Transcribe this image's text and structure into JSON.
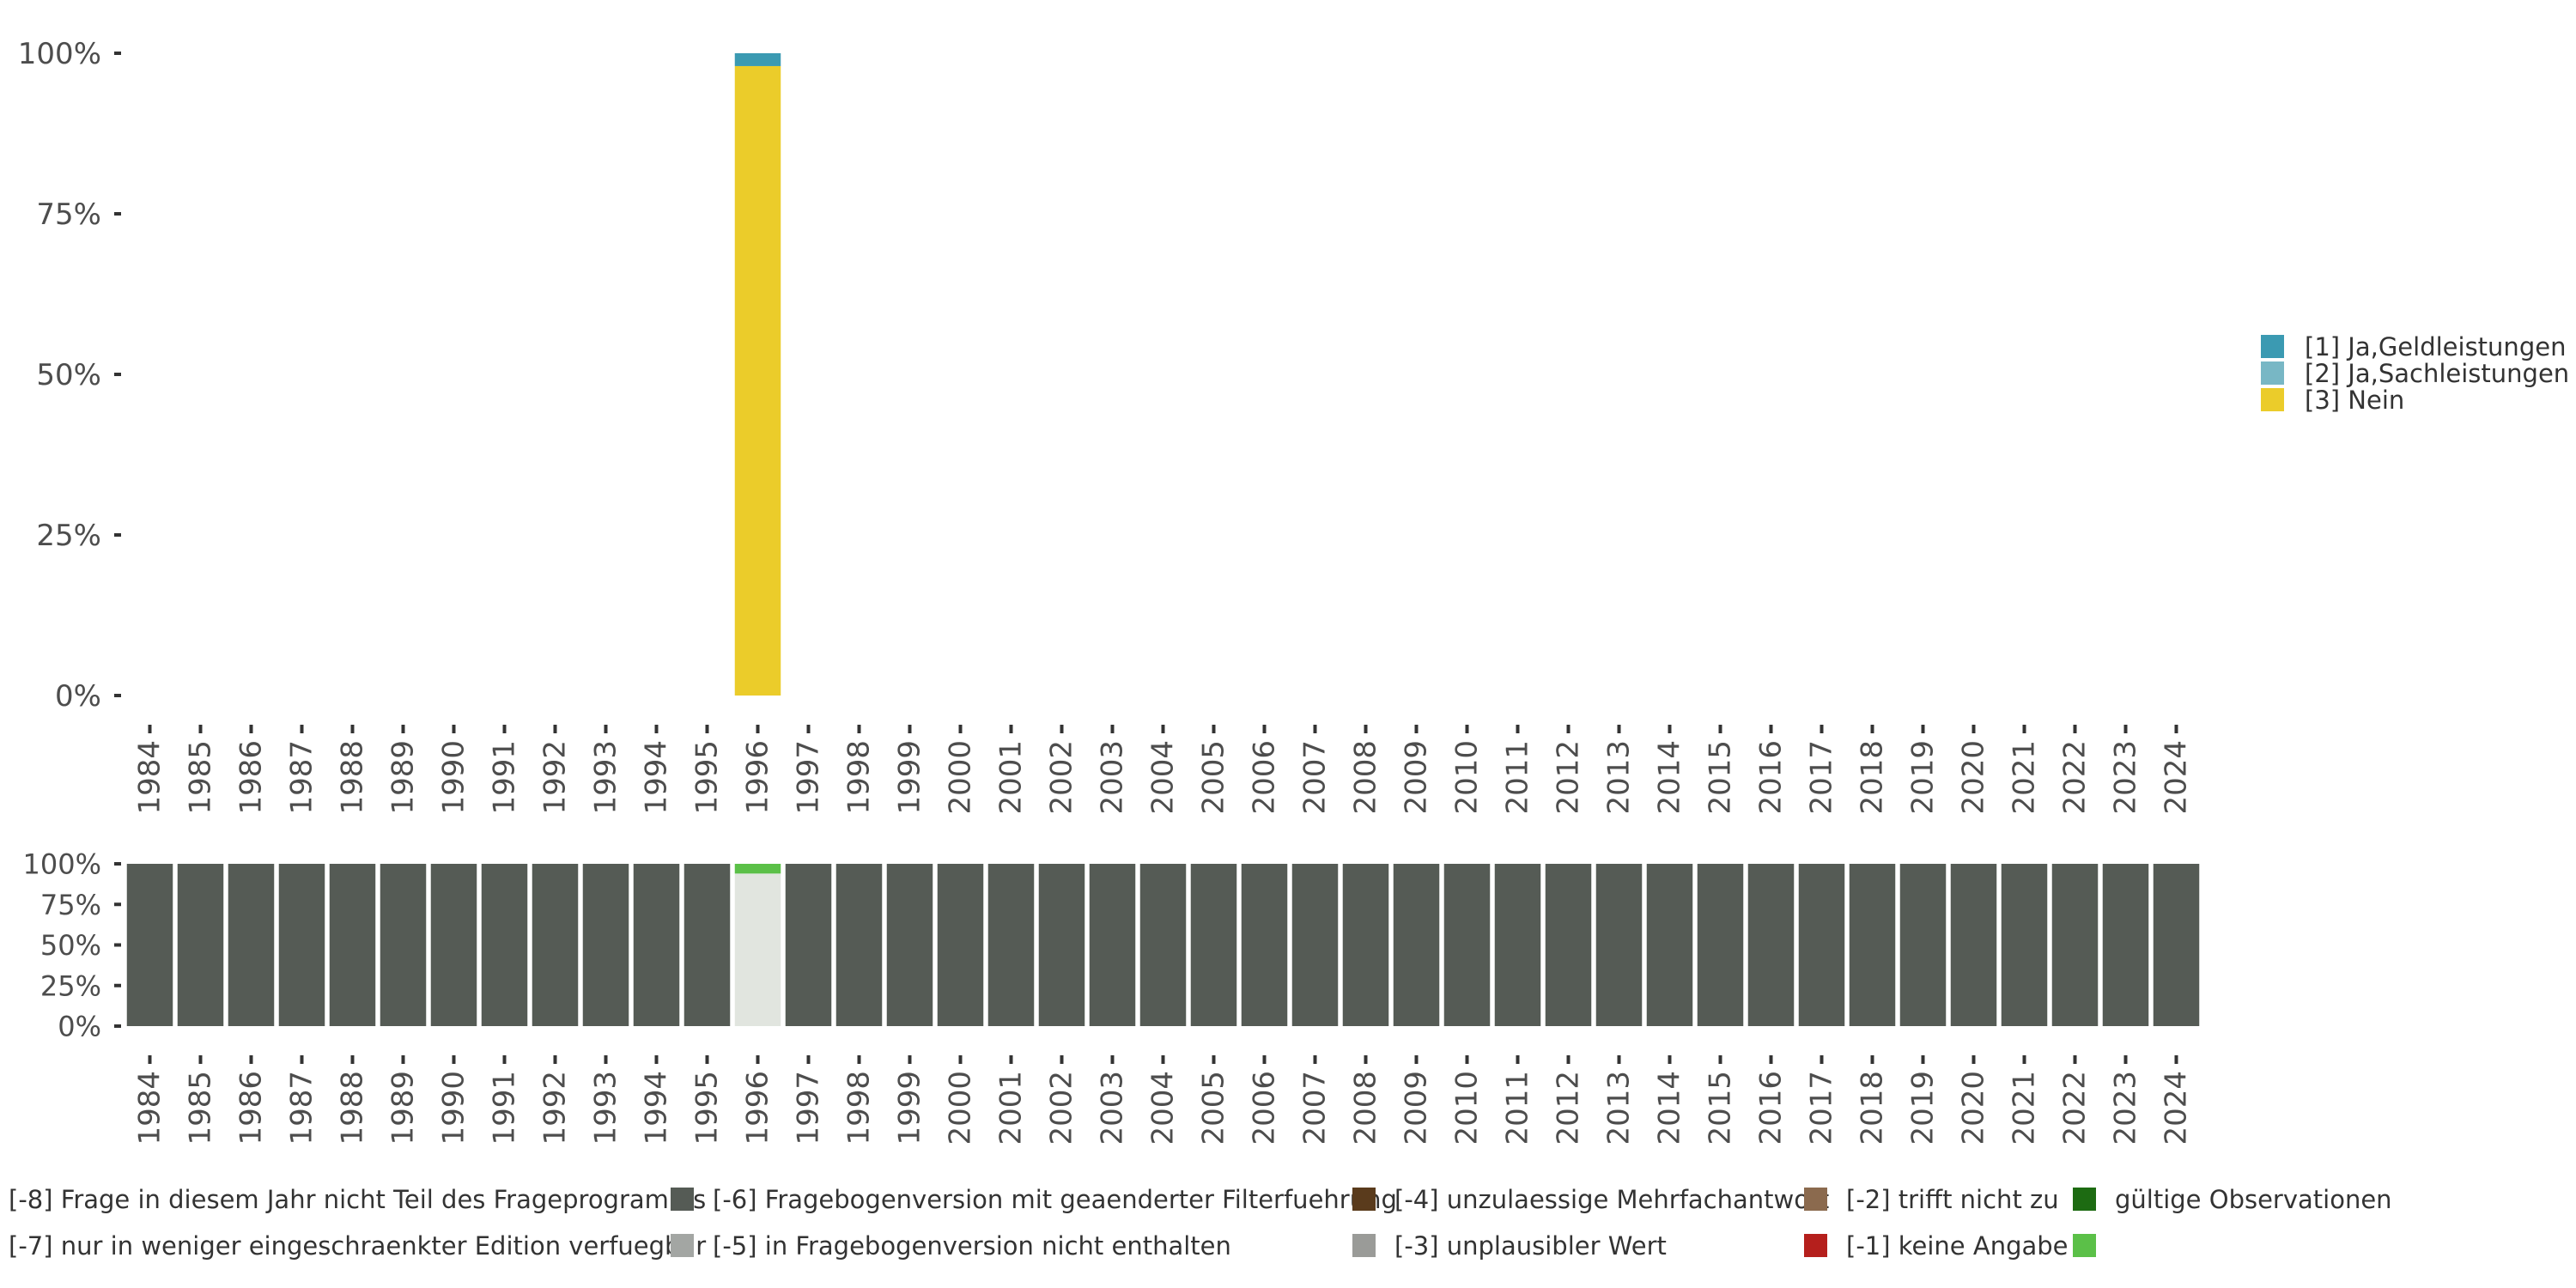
{
  "chart_data": [
    {
      "type": "bar",
      "stacked": true,
      "title": "",
      "xlabel": "",
      "ylabel": "",
      "ylim": [
        0,
        100
      ],
      "yticks": [
        "0%",
        "25%",
        "50%",
        "75%",
        "100%"
      ],
      "categories": [
        "1984",
        "1985",
        "1986",
        "1987",
        "1988",
        "1989",
        "1990",
        "1991",
        "1992",
        "1993",
        "1994",
        "1995",
        "1996",
        "1997",
        "1998",
        "1999",
        "2000",
        "2001",
        "2002",
        "2003",
        "2004",
        "2005",
        "2006",
        "2007",
        "2008",
        "2009",
        "2010",
        "2011",
        "2012",
        "2013",
        "2014",
        "2015",
        "2016",
        "2017",
        "2018",
        "2019",
        "2020",
        "2021",
        "2022",
        "2023",
        "2024"
      ],
      "series": [
        {
          "name": "[3] Nein",
          "color": "#EBCC2A",
          "values": [
            0,
            0,
            0,
            0,
            0,
            0,
            0,
            0,
            0,
            0,
            0,
            0,
            98,
            0,
            0,
            0,
            0,
            0,
            0,
            0,
            0,
            0,
            0,
            0,
            0,
            0,
            0,
            0,
            0,
            0,
            0,
            0,
            0,
            0,
            0,
            0,
            0,
            0,
            0,
            0,
            0
          ]
        },
        {
          "name": "[2] Ja,Sachleistungen",
          "color": "#78B7C5",
          "values": [
            0,
            0,
            0,
            0,
            0,
            0,
            0,
            0,
            0,
            0,
            0,
            0,
            0,
            0,
            0,
            0,
            0,
            0,
            0,
            0,
            0,
            0,
            0,
            0,
            0,
            0,
            0,
            0,
            0,
            0,
            0,
            0,
            0,
            0,
            0,
            0,
            0,
            0,
            0,
            0,
            0
          ]
        },
        {
          "name": "[1] Ja,Geldleistungen",
          "color": "#3B9AB2",
          "values": [
            0,
            0,
            0,
            0,
            0,
            0,
            0,
            0,
            0,
            0,
            0,
            0,
            2,
            0,
            0,
            0,
            0,
            0,
            0,
            0,
            0,
            0,
            0,
            0,
            0,
            0,
            0,
            0,
            0,
            0,
            0,
            0,
            0,
            0,
            0,
            0,
            0,
            0,
            0,
            0,
            0
          ]
        }
      ],
      "legend": {
        "position": "right",
        "entries": [
          {
            "label": "[1] Ja,Geldleistungen",
            "color": "#3B9AB2"
          },
          {
            "label": "[2] Ja,Sachleistungen",
            "color": "#78B7C5"
          },
          {
            "label": "[3] Nein",
            "color": "#EBCC2A"
          }
        ]
      }
    },
    {
      "type": "bar",
      "stacked": true,
      "title": "",
      "xlabel": "",
      "ylabel": "",
      "ylim": [
        0,
        100
      ],
      "yticks": [
        "0%",
        "25%",
        "50%",
        "75%",
        "100%"
      ],
      "categories": [
        "1984",
        "1985",
        "1986",
        "1987",
        "1988",
        "1989",
        "1990",
        "1991",
        "1992",
        "1993",
        "1994",
        "1995",
        "1996",
        "1997",
        "1998",
        "1999",
        "2000",
        "2001",
        "2002",
        "2003",
        "2004",
        "2005",
        "2006",
        "2007",
        "2008",
        "2009",
        "2010",
        "2011",
        "2012",
        "2013",
        "2014",
        "2015",
        "2016",
        "2017",
        "2018",
        "2019",
        "2020",
        "2021",
        "2022",
        "2023",
        "2024"
      ],
      "series": [
        {
          "name": "gültige Observationen",
          "color": "#E1E5DF",
          "values": [
            0,
            0,
            0,
            0,
            0,
            0,
            0,
            0,
            0,
            0,
            0,
            0,
            94,
            0,
            0,
            0,
            0,
            0,
            0,
            0,
            0,
            0,
            0,
            0,
            0,
            0,
            0,
            0,
            0,
            0,
            0,
            0,
            0,
            0,
            0,
            0,
            0,
            0,
            0,
            0,
            0
          ]
        },
        {
          "name": "[-1] keine Angabe",
          "color": "#5BC048",
          "values": [
            0,
            0,
            0,
            0,
            0,
            0,
            0,
            0,
            0,
            0,
            0,
            0,
            6,
            0,
            0,
            0,
            0,
            0,
            0,
            0,
            0,
            0,
            0,
            0,
            0,
            0,
            0,
            0,
            0,
            0,
            0,
            0,
            0,
            0,
            0,
            0,
            0,
            0,
            0,
            0,
            0
          ]
        },
        {
          "name": "[-8] Frage in diesem Jahr nicht Teil des Frageprogramms",
          "color": "#555B55",
          "values": [
            100,
            100,
            100,
            100,
            100,
            100,
            100,
            100,
            100,
            100,
            100,
            100,
            0,
            100,
            100,
            100,
            100,
            100,
            100,
            100,
            100,
            100,
            100,
            100,
            100,
            100,
            100,
            100,
            100,
            100,
            100,
            100,
            100,
            100,
            100,
            100,
            100,
            100,
            100,
            100,
            100
          ]
        }
      ],
      "legend": {
        "position": "bottom",
        "entries": [
          {
            "label": "[-8] Frage in diesem Jahr nicht Teil des Frageprogramms",
            "color": "#555B55"
          },
          {
            "label": "[-7] nur in weniger eingeschraenkter Edition verfuegbar",
            "color": "#A3A6A3"
          },
          {
            "label": "[-6] Fragebogenversion mit geaenderter Filterfuehrung",
            "color": "#5A3B1C"
          },
          {
            "label": "[-5] in Fragebogenversion nicht enthalten",
            "color": "#9A9B98"
          },
          {
            "label": "[-4] unzulaessige Mehrfachantwort",
            "color": "#8B6A4E"
          },
          {
            "label": "[-3] unplausibler Wert",
            "color": "#B51F1C"
          },
          {
            "label": "[-2] trifft nicht zu",
            "color": "#1D6B12"
          },
          {
            "label": "[-1] keine Angabe",
            "color": "#5BC048"
          },
          {
            "label": "gültige Observationen",
            "color": "#E1E5DF"
          }
        ]
      }
    }
  ]
}
